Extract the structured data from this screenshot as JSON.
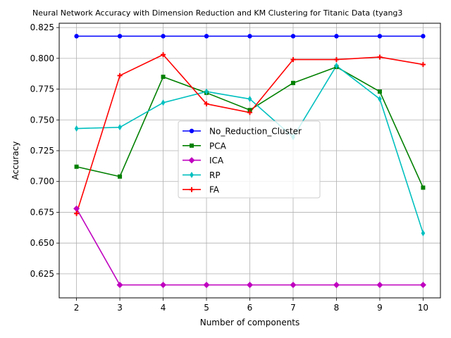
{
  "chart_data": {
    "type": "line",
    "title": "Neural Network Accuracy with Dimension Reduction and KM Clustering for Titanic Data (tyang3",
    "xlabel": "Number of components",
    "ylabel": "Accuracy",
    "x": [
      2,
      3,
      4,
      5,
      6,
      7,
      8,
      9,
      10
    ],
    "xlim": [
      1.6,
      10.4
    ],
    "ylim": [
      0.6055,
      0.8285
    ],
    "xticks": [
      2,
      3,
      4,
      5,
      6,
      7,
      8,
      9,
      10
    ],
    "yticks": [
      0.625,
      0.65,
      0.675,
      0.7,
      0.725,
      0.75,
      0.775,
      0.8,
      0.825
    ],
    "ytick_labels": [
      "0.625",
      "0.650",
      "0.675",
      "0.700",
      "0.725",
      "0.750",
      "0.775",
      "0.800",
      "0.825"
    ],
    "grid": true,
    "legend_position": "center",
    "series": [
      {
        "name": "No_Reduction_Cluster",
        "color": "#0000ff",
        "marker": "circle",
        "values": [
          0.818,
          0.818,
          0.818,
          0.818,
          0.818,
          0.818,
          0.818,
          0.818,
          0.818
        ]
      },
      {
        "name": "PCA",
        "color": "#008000",
        "marker": "square",
        "values": [
          0.712,
          0.704,
          0.785,
          0.772,
          0.758,
          0.78,
          0.793,
          0.773,
          0.695
        ]
      },
      {
        "name": "ICA",
        "color": "#bf00bf",
        "marker": "diamond",
        "values": [
          0.678,
          0.616,
          0.616,
          0.616,
          0.616,
          0.616,
          0.616,
          0.616,
          0.616
        ]
      },
      {
        "name": "RP",
        "color": "#00bfbf",
        "marker": "thin_diamond",
        "values": [
          0.743,
          0.744,
          0.764,
          0.773,
          0.767,
          0.736,
          0.794,
          0.767,
          0.658
        ]
      },
      {
        "name": "FA",
        "color": "#ff0000",
        "marker": "plus",
        "values": [
          0.674,
          0.786,
          0.803,
          0.763,
          0.756,
          0.799,
          0.799,
          0.801,
          0.795
        ]
      }
    ]
  }
}
